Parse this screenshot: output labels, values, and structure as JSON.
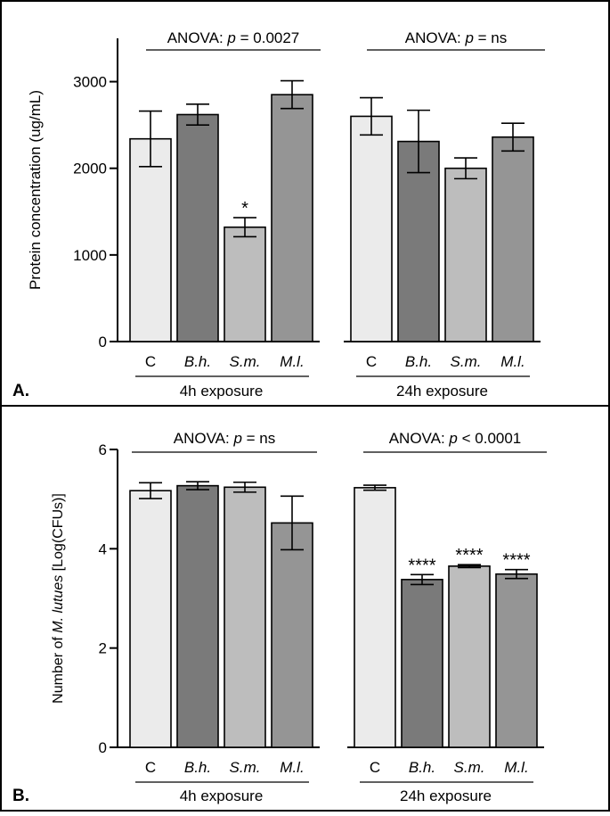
{
  "chart_data": [
    {
      "type": "bar",
      "panel_label": "A.",
      "ylabel": "Protein concentration (ug/mL)",
      "ylim": [
        0,
        3500
      ],
      "yticks": [
        0,
        1000,
        2000,
        3000
      ],
      "categories": [
        "C",
        "B.h.",
        "S.m.",
        "M.l."
      ],
      "groups": [
        {
          "name": "4h exposure",
          "anova_prefix": "ANOVA: ",
          "anova_p": "p",
          "anova_suffix": " = 0.0027",
          "values": [
            2340,
            2620,
            1320,
            2850
          ],
          "errors": [
            320,
            120,
            110,
            160
          ],
          "annotations": [
            "",
            "",
            "*",
            ""
          ]
        },
        {
          "name": "24h exposure",
          "anova_prefix": "ANOVA: ",
          "anova_p": "p",
          "anova_suffix": " = ns",
          "values": [
            2600,
            2310,
            2000,
            2360
          ],
          "errors": [
            215,
            360,
            120,
            160
          ],
          "annotations": [
            "",
            "",
            "",
            ""
          ]
        }
      ],
      "bar_colors": [
        "#ebebeb",
        "#7a7a7a",
        "#bdbdbd",
        "#959595"
      ]
    },
    {
      "type": "bar",
      "panel_label": "B.",
      "ylabel_prefix": "Number of ",
      "ylabel_italic": "M. lutues",
      "ylabel_suffix": " [Log(CFUs)]",
      "ylim": [
        0,
        6
      ],
      "yticks": [
        0,
        2,
        4,
        6
      ],
      "categories": [
        "C",
        "B.h.",
        "S.m.",
        "M.l."
      ],
      "groups": [
        {
          "name": "4h exposure",
          "anova_prefix": "ANOVA: ",
          "anova_p": "p",
          "anova_suffix": " = ns",
          "values": [
            5.17,
            5.27,
            5.24,
            4.52
          ],
          "errors": [
            0.16,
            0.08,
            0.1,
            0.54
          ],
          "annotations": [
            "",
            "",
            "",
            ""
          ]
        },
        {
          "name": "24h exposure",
          "anova_prefix": "ANOVA: ",
          "anova_p": "p",
          "anova_suffix": " < 0.0001",
          "values": [
            5.23,
            3.38,
            3.65,
            3.49
          ],
          "errors": [
            0.05,
            0.1,
            0.03,
            0.09
          ],
          "annotations": [
            "",
            "****",
            "****",
            "****"
          ]
        }
      ],
      "bar_colors": [
        "#ebebeb",
        "#7a7a7a",
        "#bdbdbd",
        "#959595"
      ]
    }
  ]
}
